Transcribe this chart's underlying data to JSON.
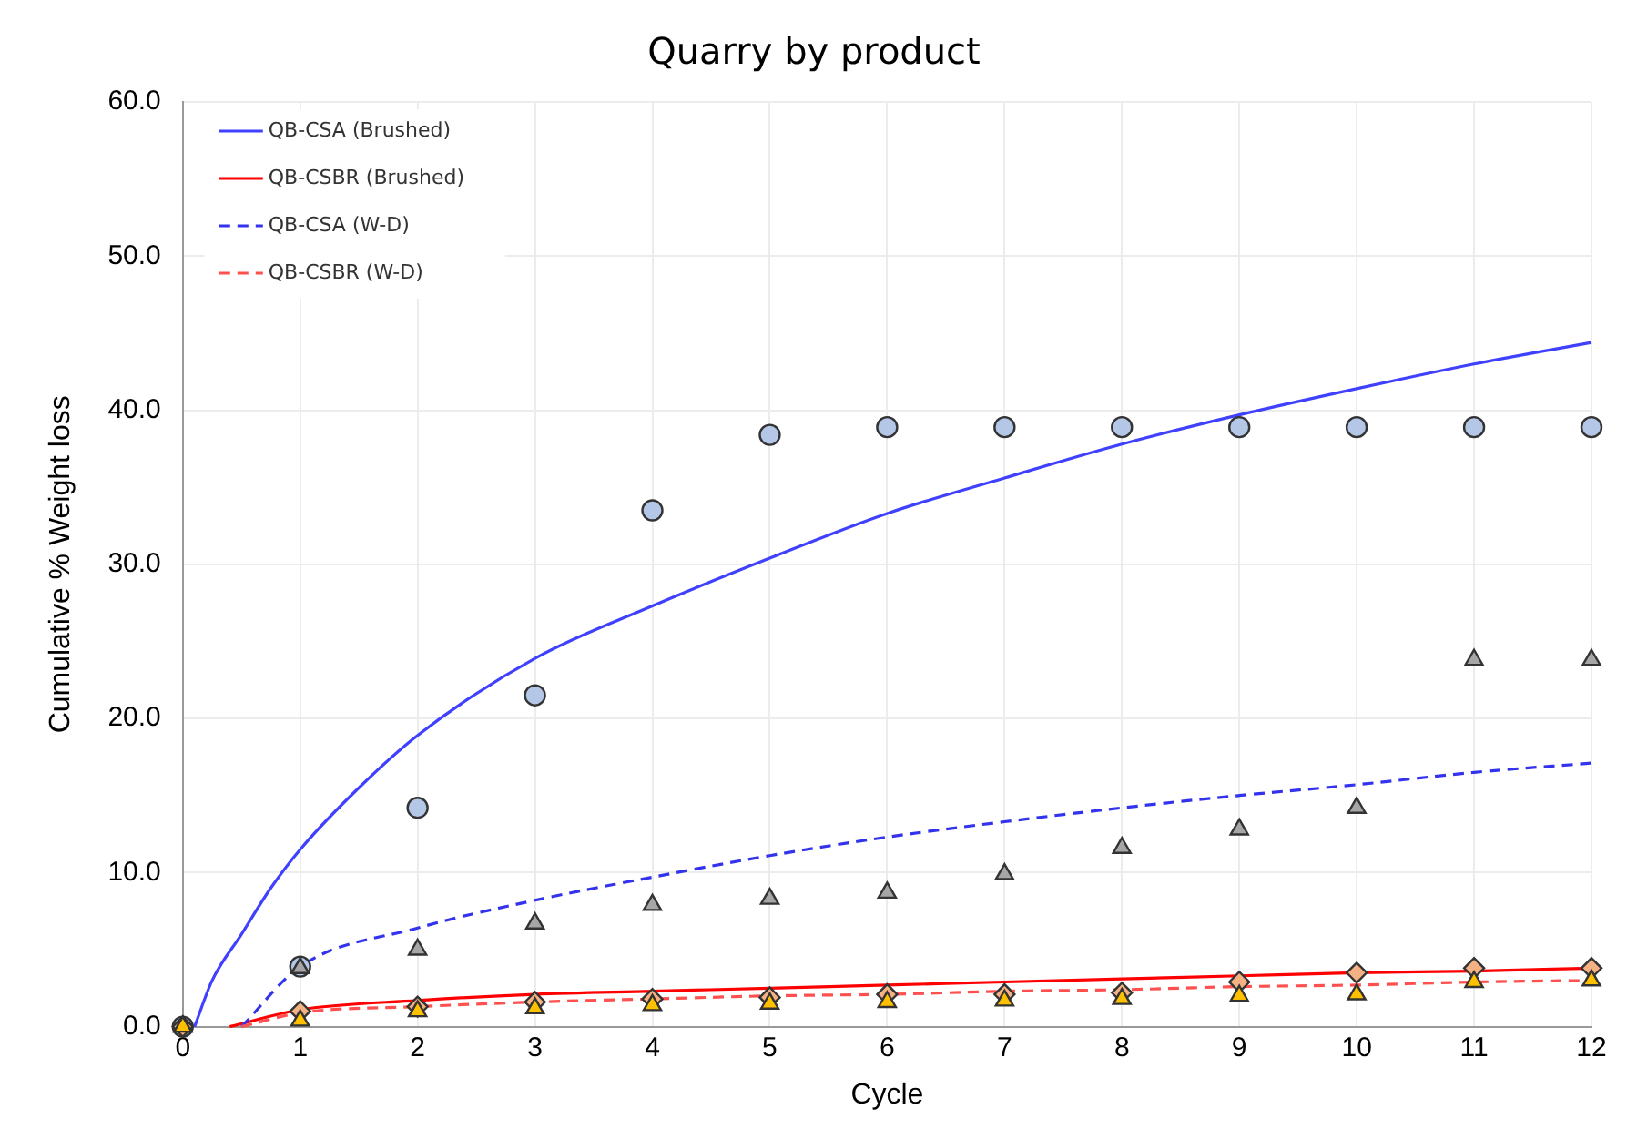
{
  "chart_data": {
    "type": "scatter",
    "title": "Quarry by product",
    "xlabel": "Cycle",
    "ylabel": "Cumulative % Weight loss",
    "xlim": [
      0,
      12
    ],
    "xticks": [
      0,
      1,
      2,
      3,
      4,
      5,
      6,
      7,
      8,
      9,
      10,
      11,
      12
    ],
    "ylim": [
      0,
      60
    ],
    "yticks": [
      {
        "value": 0,
        "label": "0.0"
      },
      {
        "value": 10,
        "label": "10.0"
      },
      {
        "value": 20,
        "label": "20.0"
      },
      {
        "value": 30,
        "label": "30.0"
      },
      {
        "value": 40,
        "label": "40.0"
      },
      {
        "value": 50,
        "label": "50.0"
      },
      {
        "value": 60,
        "label": "60.0"
      }
    ],
    "grid": true,
    "legend": "top left",
    "x": [
      0,
      1,
      2,
      3,
      4,
      5,
      6,
      7,
      8,
      9,
      10,
      11,
      12
    ],
    "series": [
      {
        "marker": "circle",
        "color": "#b4c7e7",
        "values": [
          0,
          3.9,
          14.2,
          21.5,
          33.5,
          38.4,
          38.9,
          38.9,
          38.9,
          38.9,
          38.9,
          38.9,
          38.9
        ]
      },
      {
        "marker": "triangle",
        "color": "#a6a6a6",
        "values": [
          0,
          3.8,
          5.0,
          6.7,
          7.9,
          8.3,
          8.7,
          9.9,
          11.6,
          12.8,
          14.2,
          23.8,
          23.8
        ]
      },
      {
        "marker": "diamond",
        "color": "#f4b183",
        "values": [
          0,
          1.0,
          1.3,
          1.6,
          1.8,
          1.9,
          2.1,
          2.1,
          2.2,
          2.9,
          3.5,
          3.8,
          3.8
        ]
      },
      {
        "marker": "triangle",
        "color": "#ffc000",
        "values": [
          0,
          0.4,
          1.0,
          1.2,
          1.4,
          1.5,
          1.6,
          1.7,
          1.8,
          2.0,
          2.1,
          2.9,
          3.0
        ]
      },
      {
        "type": "line",
        "name": "QB-CSA (Brushed)",
        "color": "#4040ff",
        "line_style": "solid",
        "marker": "none",
        "x": [
          0.1,
          0.25,
          0.5,
          0.75,
          1,
          1.5,
          2,
          3,
          4,
          5,
          6,
          7,
          8,
          9,
          10,
          11,
          12
        ],
        "values": [
          0,
          3,
          6,
          9,
          11.5,
          15.5,
          18.9,
          23.9,
          27.3,
          30.4,
          33.3,
          35.6,
          37.8,
          39.7,
          41.4,
          43.0,
          44.4
        ]
      },
      {
        "type": "line",
        "name": "QB-CSBR (Brushed)",
        "color": "#ff0000",
        "line_style": "solid",
        "marker": "none",
        "x": [
          0.4,
          1,
          2,
          3,
          4,
          5,
          6,
          7,
          8,
          9,
          10,
          11,
          12
        ],
        "values": [
          0,
          1.1,
          1.7,
          2.1,
          2.3,
          2.5,
          2.7,
          2.9,
          3.1,
          3.3,
          3.5,
          3.6,
          3.8
        ]
      },
      {
        "type": "line",
        "name": "QB-CSA (W-D)",
        "color": "#3333ee",
        "line_style": "dashed",
        "marker": "none",
        "x": [
          0.5,
          1,
          2,
          3,
          4,
          5,
          6,
          7,
          8,
          9,
          10,
          11,
          12
        ],
        "values": [
          0,
          3.9,
          6.4,
          8.2,
          9.7,
          11.1,
          12.3,
          13.3,
          14.2,
          15.0,
          15.7,
          16.5,
          17.1
        ]
      },
      {
        "type": "line",
        "name": "QB-CSBR (W-D)",
        "color": "#ff5050",
        "line_style": "dashed",
        "marker": "none",
        "x": [
          0.5,
          1,
          2,
          3,
          4,
          5,
          6,
          7,
          8,
          9,
          10,
          11,
          12
        ],
        "values": [
          0,
          0.9,
          1.3,
          1.6,
          1.8,
          2.0,
          2.1,
          2.3,
          2.4,
          2.6,
          2.7,
          2.9,
          3.0
        ]
      }
    ]
  }
}
